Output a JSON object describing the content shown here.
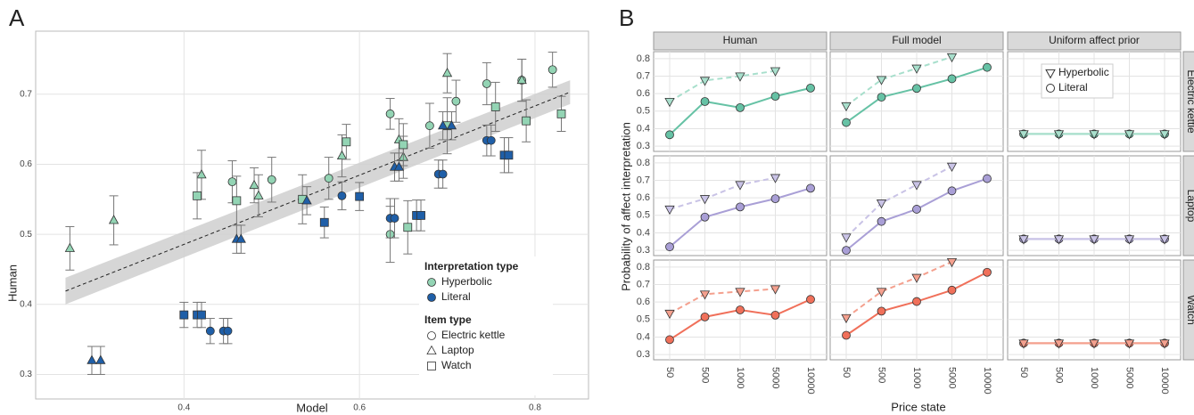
{
  "chart_data": [
    {
      "type": "scatter",
      "panel_label": "A",
      "xlabel": "Model",
      "ylabel": "Human",
      "xlim": [
        0.231,
        0.861
      ],
      "ylim": [
        0.265,
        0.79
      ],
      "xticks": [
        0.4,
        0.6,
        0.8
      ],
      "yticks": [
        0.3,
        0.4,
        0.5,
        0.6,
        0.7
      ],
      "grid": true,
      "fit": {
        "x": [
          0.265,
          0.84
        ],
        "values": [
          0.419,
          0.703
        ],
        "lower": [
          0.4,
          0.686
        ],
        "upper": [
          0.438,
          0.72
        ]
      },
      "legend": {
        "groups": [
          {
            "title": "Interpretation type",
            "entries": [
              {
                "name": "Hyperbolic",
                "color": "#93d4b4"
              },
              {
                "name": "Literal",
                "color": "#1f5fa8"
              }
            ]
          },
          {
            "title": "Item type",
            "entries": [
              {
                "name": "Electric kettle",
                "shape": "circle"
              },
              {
                "name": "Laptop",
                "shape": "triangle"
              },
              {
                "name": "Watch",
                "shape": "square"
              }
            ]
          }
        ]
      },
      "series": [
        {
          "interpretation": "Hyperbolic",
          "item": "Electric kettle",
          "x": [
            0.455,
            0.5,
            0.565,
            0.635,
            0.635,
            0.68,
            0.71,
            0.745,
            0.785,
            0.82
          ],
          "values": [
            0.575,
            0.578,
            0.58,
            0.672,
            0.5,
            0.655,
            0.69,
            0.715,
            0.72,
            0.735
          ],
          "errors": [
            0.03,
            0.032,
            0.03,
            0.022,
            0.04,
            0.032,
            0.03,
            0.03,
            0.03,
            0.025
          ]
        },
        {
          "interpretation": "Hyperbolic",
          "item": "Laptop",
          "x": [
            0.27,
            0.32,
            0.42,
            0.48,
            0.485,
            0.58,
            0.645,
            0.65,
            0.7,
            0.785
          ],
          "values": [
            0.48,
            0.52,
            0.585,
            0.57,
            0.555,
            0.612,
            0.635,
            0.61,
            0.73,
            0.72
          ],
          "errors": [
            0.031,
            0.035,
            0.035,
            0.025,
            0.03,
            0.03,
            0.03,
            0.03,
            0.028,
            0.03
          ]
        },
        {
          "interpretation": "Hyperbolic",
          "item": "Watch",
          "x": [
            0.415,
            0.46,
            0.535,
            0.585,
            0.65,
            0.655,
            0.7,
            0.755,
            0.79,
            0.83
          ],
          "values": [
            0.555,
            0.548,
            0.55,
            0.632,
            0.628,
            0.51,
            0.655,
            0.682,
            0.662,
            0.672
          ],
          "errors": [
            0.033,
            0.035,
            0.035,
            0.025,
            0.03,
            0.038,
            0.04,
            0.035,
            0.03,
            0.025
          ]
        },
        {
          "interpretation": "Literal",
          "item": "Electric kettle",
          "x": [
            0.43,
            0.445,
            0.45,
            0.58,
            0.635,
            0.64,
            0.69,
            0.695,
            0.745,
            0.75
          ],
          "values": [
            0.362,
            0.362,
            0.362,
            0.555,
            0.523,
            0.523,
            0.586,
            0.586,
            0.634,
            0.634
          ],
          "errors": [
            0.018,
            0.018,
            0.018,
            0.02,
            0.028,
            0.028,
            0.02,
            0.02,
            0.022,
            0.022
          ]
        },
        {
          "interpretation": "Literal",
          "item": "Laptop",
          "x": [
            0.295,
            0.305,
            0.46,
            0.465,
            0.54,
            0.64,
            0.645,
            0.695,
            0.705
          ],
          "values": [
            0.32,
            0.32,
            0.493,
            0.493,
            0.548,
            0.596,
            0.596,
            0.655,
            0.655
          ],
          "errors": [
            0.02,
            0.02,
            0.02,
            0.02,
            0.02,
            0.02,
            0.02,
            0.02,
            0.02
          ]
        },
        {
          "interpretation": "Literal",
          "item": "Watch",
          "x": [
            0.4,
            0.415,
            0.42,
            0.56,
            0.6,
            0.665,
            0.67,
            0.765,
            0.77
          ],
          "values": [
            0.385,
            0.385,
            0.385,
            0.517,
            0.554,
            0.527,
            0.527,
            0.613,
            0.613
          ],
          "errors": [
            0.018,
            0.018,
            0.018,
            0.022,
            0.02,
            0.022,
            0.022,
            0.025,
            0.025
          ]
        }
      ]
    },
    {
      "type": "facet_line",
      "panel_label": "B",
      "xlabel": "Price state",
      "ylabel": "Probability of affect interpretation",
      "categories": [
        "50",
        "500",
        "1000",
        "5000",
        "10000"
      ],
      "ylim": [
        0.27,
        0.84
      ],
      "yticks": [
        0.3,
        0.4,
        0.5,
        0.6,
        0.7,
        0.8
      ],
      "grid": true,
      "columns": [
        "Human",
        "Full model",
        "Uniform affect prior"
      ],
      "rows": [
        {
          "name": "Electric kettle",
          "color": "#66c2a5",
          "light_color": "#a8dfcc"
        },
        {
          "name": "Laptop",
          "color": "#a99fd6",
          "light_color": "#c9c3e6"
        },
        {
          "name": "Watch",
          "color": "#f0705a",
          "light_color": "#f4a08e"
        }
      ],
      "legend": {
        "entries": [
          {
            "name": "Hyperbolic",
            "shape": "triangle"
          },
          {
            "name": "Literal",
            "shape": "circle"
          }
        ]
      },
      "panels": [
        [
          {
            "series": [
              {
                "values": [
                  0.555,
                  0.675,
                  0.7,
                  0.73,
                  null
                ]
              },
              {
                "values": [
                  0.365,
                  0.555,
                  0.52,
                  0.585,
                  0.632
                ]
              }
            ]
          },
          {
            "series": [
              {
                "values": [
                  0.53,
                  0.68,
                  0.745,
                  0.81,
                  null
                ]
              },
              {
                "values": [
                  0.435,
                  0.58,
                  0.63,
                  0.685,
                  0.75
                ]
              }
            ]
          },
          {
            "series": [
              {
                "values": [
                  0.37,
                  0.37,
                  0.37,
                  0.37,
                  0.37
                ]
              },
              {
                "values": [
                  0.37,
                  0.37,
                  0.37,
                  0.37,
                  0.37
                ]
              }
            ]
          }
        ],
        [
          {
            "series": [
              {
                "values": [
                  0.535,
                  0.595,
                  0.675,
                  0.715,
                  null
                ]
              },
              {
                "values": [
                  0.32,
                  0.49,
                  0.548,
                  0.595,
                  0.655
                ]
              }
            ]
          },
          {
            "series": [
              {
                "values": [
                  0.375,
                  0.57,
                  0.675,
                  0.78,
                  null
                ]
              },
              {
                "values": [
                  0.3,
                  0.465,
                  0.535,
                  0.64,
                  0.71
                ]
              }
            ]
          },
          {
            "series": [
              {
                "values": [
                  0.365,
                  0.365,
                  0.365,
                  0.365,
                  0.365
                ]
              },
              {
                "values": [
                  0.365,
                  0.365,
                  0.365,
                  0.365,
                  0.365
                ]
              }
            ]
          }
        ],
        [
          {
            "series": [
              {
                "values": [
                  0.535,
                  0.645,
                  0.66,
                  0.675,
                  null
                ]
              },
              {
                "values": [
                  0.385,
                  0.515,
                  0.555,
                  0.525,
                  0.615
                ]
              }
            ]
          },
          {
            "series": [
              {
                "values": [
                  0.51,
                  0.66,
                  0.74,
                  0.83,
                  null
                ]
              },
              {
                "values": [
                  0.41,
                  0.548,
                  0.603,
                  0.668,
                  0.77
                ]
              }
            ]
          },
          {
            "series": [
              {
                "values": [
                  0.365,
                  0.365,
                  0.365,
                  0.365,
                  0.365
                ]
              },
              {
                "values": [
                  0.365,
                  0.365,
                  0.365,
                  0.365,
                  0.365
                ]
              }
            ]
          }
        ]
      ]
    }
  ]
}
